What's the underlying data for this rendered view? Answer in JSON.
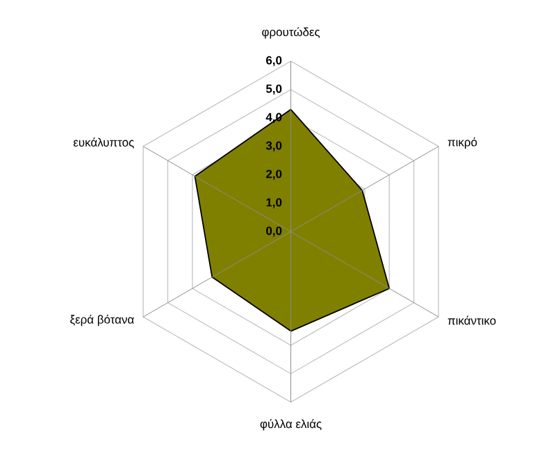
{
  "chart_data": {
    "type": "radar",
    "categories": [
      "φρουτώδες",
      "πικρό",
      "πικάντικο",
      "φύλλα ελιάς",
      "ξερά βότανα",
      "ευκάλυπτος"
    ],
    "series": [
      {
        "color": "#808000",
        "values": [
          4.3,
          2.9,
          4.0,
          3.5,
          3.2,
          3.9
        ]
      }
    ],
    "ylim": [
      0,
      6
    ],
    "yticks": [
      {
        "value": 0,
        "label": "0,0"
      },
      {
        "value": 1,
        "label": "1,0"
      },
      {
        "value": 2,
        "label": "2,0"
      },
      {
        "value": 3,
        "label": "3,0"
      },
      {
        "value": 4,
        "label": "4,0"
      },
      {
        "value": 5,
        "label": "5,0"
      },
      {
        "value": 6,
        "label": "6,0"
      }
    ],
    "grid": true
  }
}
